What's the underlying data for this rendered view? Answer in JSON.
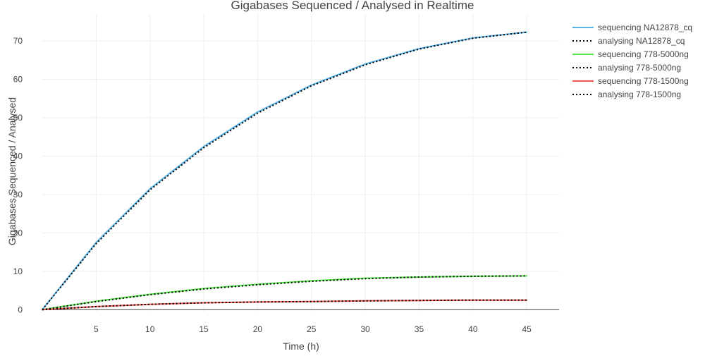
{
  "chart_data": {
    "type": "line",
    "title": "Gigabases Sequenced / Analysed in Realtime",
    "xlabel": "Time (h)",
    "ylabel": "Gigabases Sequenced / Analysed",
    "xlim": [
      0,
      48
    ],
    "ylim": [
      -0.5,
      77
    ],
    "xticks": [
      "5",
      "10",
      "15",
      "20",
      "25",
      "30",
      "35",
      "40",
      "45"
    ],
    "yticks": [
      "0",
      "10",
      "20",
      "30",
      "40",
      "50",
      "60",
      "70"
    ],
    "grid": true,
    "legend_position": "top-right",
    "x": [
      0,
      5,
      10,
      15,
      20,
      25,
      30,
      35,
      40,
      45
    ],
    "series": [
      {
        "name": "sequencing NA12878_cq",
        "color": "#56b4e9",
        "style": "solid",
        "values": [
          0,
          17.5,
          31.5,
          42.5,
          51.5,
          58.5,
          64,
          68,
          70.8,
          72.3
        ]
      },
      {
        "name": "analysing NA12878_cq",
        "color": "#000000",
        "style": "dotted",
        "values": [
          0,
          17.2,
          31.2,
          42.2,
          51.2,
          58.3,
          63.8,
          67.9,
          70.7,
          72.3
        ]
      },
      {
        "name": "sequencing 778-5000ng",
        "color": "#56e94a",
        "style": "solid",
        "values": [
          0,
          2.2,
          4.0,
          5.5,
          6.6,
          7.5,
          8.2,
          8.5,
          8.7,
          8.8
        ]
      },
      {
        "name": "analysing 778-5000ng",
        "color": "#000000",
        "style": "dotted",
        "values": [
          0,
          2.1,
          3.9,
          5.4,
          6.5,
          7.4,
          8.1,
          8.5,
          8.7,
          8.8
        ]
      },
      {
        "name": "sequencing 778-1500ng",
        "color": "#f2544e",
        "style": "solid",
        "values": [
          0,
          0.8,
          1.4,
          1.8,
          2.0,
          2.1,
          2.3,
          2.4,
          2.5,
          2.5
        ]
      },
      {
        "name": "analysing 778-1500ng",
        "color": "#000000",
        "style": "dotted",
        "values": [
          0,
          0.8,
          1.4,
          1.8,
          2.0,
          2.1,
          2.3,
          2.4,
          2.5,
          2.5
        ]
      }
    ]
  }
}
